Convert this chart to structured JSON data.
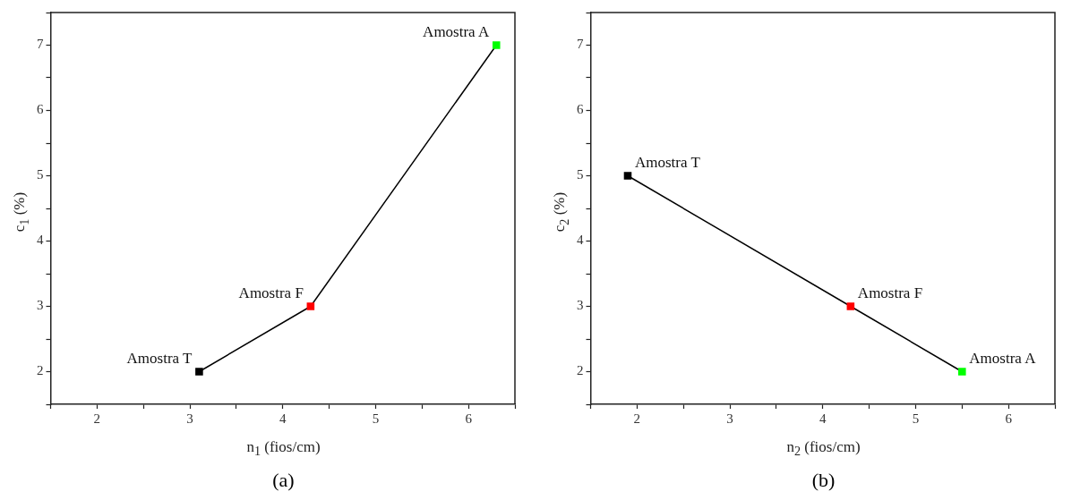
{
  "chart_data": [
    {
      "type": "line",
      "xlabel": "n$_{1}$ (fios/cm)",
      "ylabel": "c$_{1}$ (%)",
      "marker": "square",
      "line_style": "solid",
      "grid": false,
      "legend": false,
      "series": [
        {
          "color": "#000000",
          "colors": [
            "#000000",
            "#ff0000",
            "#00ff00"
          ],
          "x": [
            3.1,
            4.3,
            6.3
          ],
          "values": [
            2,
            3,
            7
          ]
        }
      ],
      "xlim": [
        1.5,
        6.5
      ],
      "xticks": [
        {
          "value": 1.5,
          "label": null
        },
        2,
        {
          "value": 2.5,
          "label": null
        },
        3,
        {
          "value": 3.5,
          "label": null
        },
        4,
        {
          "value": 4.5,
          "label": null
        },
        5,
        {
          "value": 5.5,
          "label": null
        },
        6,
        {
          "value": 6.5,
          "label": null
        }
      ],
      "ylim": [
        1.5,
        7.5
      ],
      "yticks": [
        {
          "value": 1.5,
          "label": null
        },
        2,
        {
          "value": 2.5,
          "label": null
        },
        3,
        {
          "value": 3.5,
          "label": null
        },
        4,
        {
          "value": 4.5,
          "label": null
        },
        5,
        {
          "value": 5.5,
          "label": null
        },
        6,
        {
          "value": 6.5,
          "label": null
        },
        7,
        {
          "value": 7.5,
          "label": null
        }
      ],
      "annotations": [
        {
          "text": "Amostra T",
          "x": 3.1,
          "y": 2
        },
        {
          "text": "Amostra F",
          "x": 4.3,
          "y": 3
        },
        {
          "text": "Amostra A",
          "x": 6.3,
          "y": 7
        },
        "(a)"
      ]
    },
    {
      "type": "line",
      "xlabel": "n$_{2}$ (fios/cm)",
      "ylabel": "c$_{2}$ (%)",
      "marker": "square",
      "line_style": "solid",
      "grid": false,
      "legend": false,
      "series": [
        {
          "color": "#000000",
          "colors": [
            "#000000",
            "#ff0000",
            "#00ff00"
          ],
          "x": [
            1.9,
            4.3,
            5.5
          ],
          "values": [
            5,
            3,
            2
          ]
        }
      ],
      "xlim": [
        1.5,
        6.5
      ],
      "xticks": [
        {
          "value": 1.5,
          "label": null
        },
        2,
        {
          "value": 2.5,
          "label": null
        },
        3,
        {
          "value": 3.5,
          "label": null
        },
        4,
        {
          "value": 4.5,
          "label": null
        },
        5,
        {
          "value": 5.5,
          "label": null
        },
        6,
        {
          "value": 6.5,
          "label": null
        }
      ],
      "ylim": [
        1.5,
        7.5
      ],
      "yticks": [
        {
          "value": 1.5,
          "label": null
        },
        2,
        {
          "value": 2.5,
          "label": null
        },
        3,
        {
          "value": 3.5,
          "label": null
        },
        4,
        {
          "value": 4.5,
          "label": null
        },
        5,
        {
          "value": 5.5,
          "label": null
        },
        6,
        {
          "value": 6.5,
          "label": null
        },
        7,
        {
          "value": 7.5,
          "label": null
        }
      ],
      "annotations": [
        {
          "text": "Amostra T",
          "x": 1.9,
          "y": 5
        },
        {
          "text": "Amostra F",
          "x": 4.3,
          "y": 3
        },
        {
          "text": "Amostra A",
          "x": 5.5,
          "y": 2
        },
        "(b)"
      ]
    }
  ]
}
